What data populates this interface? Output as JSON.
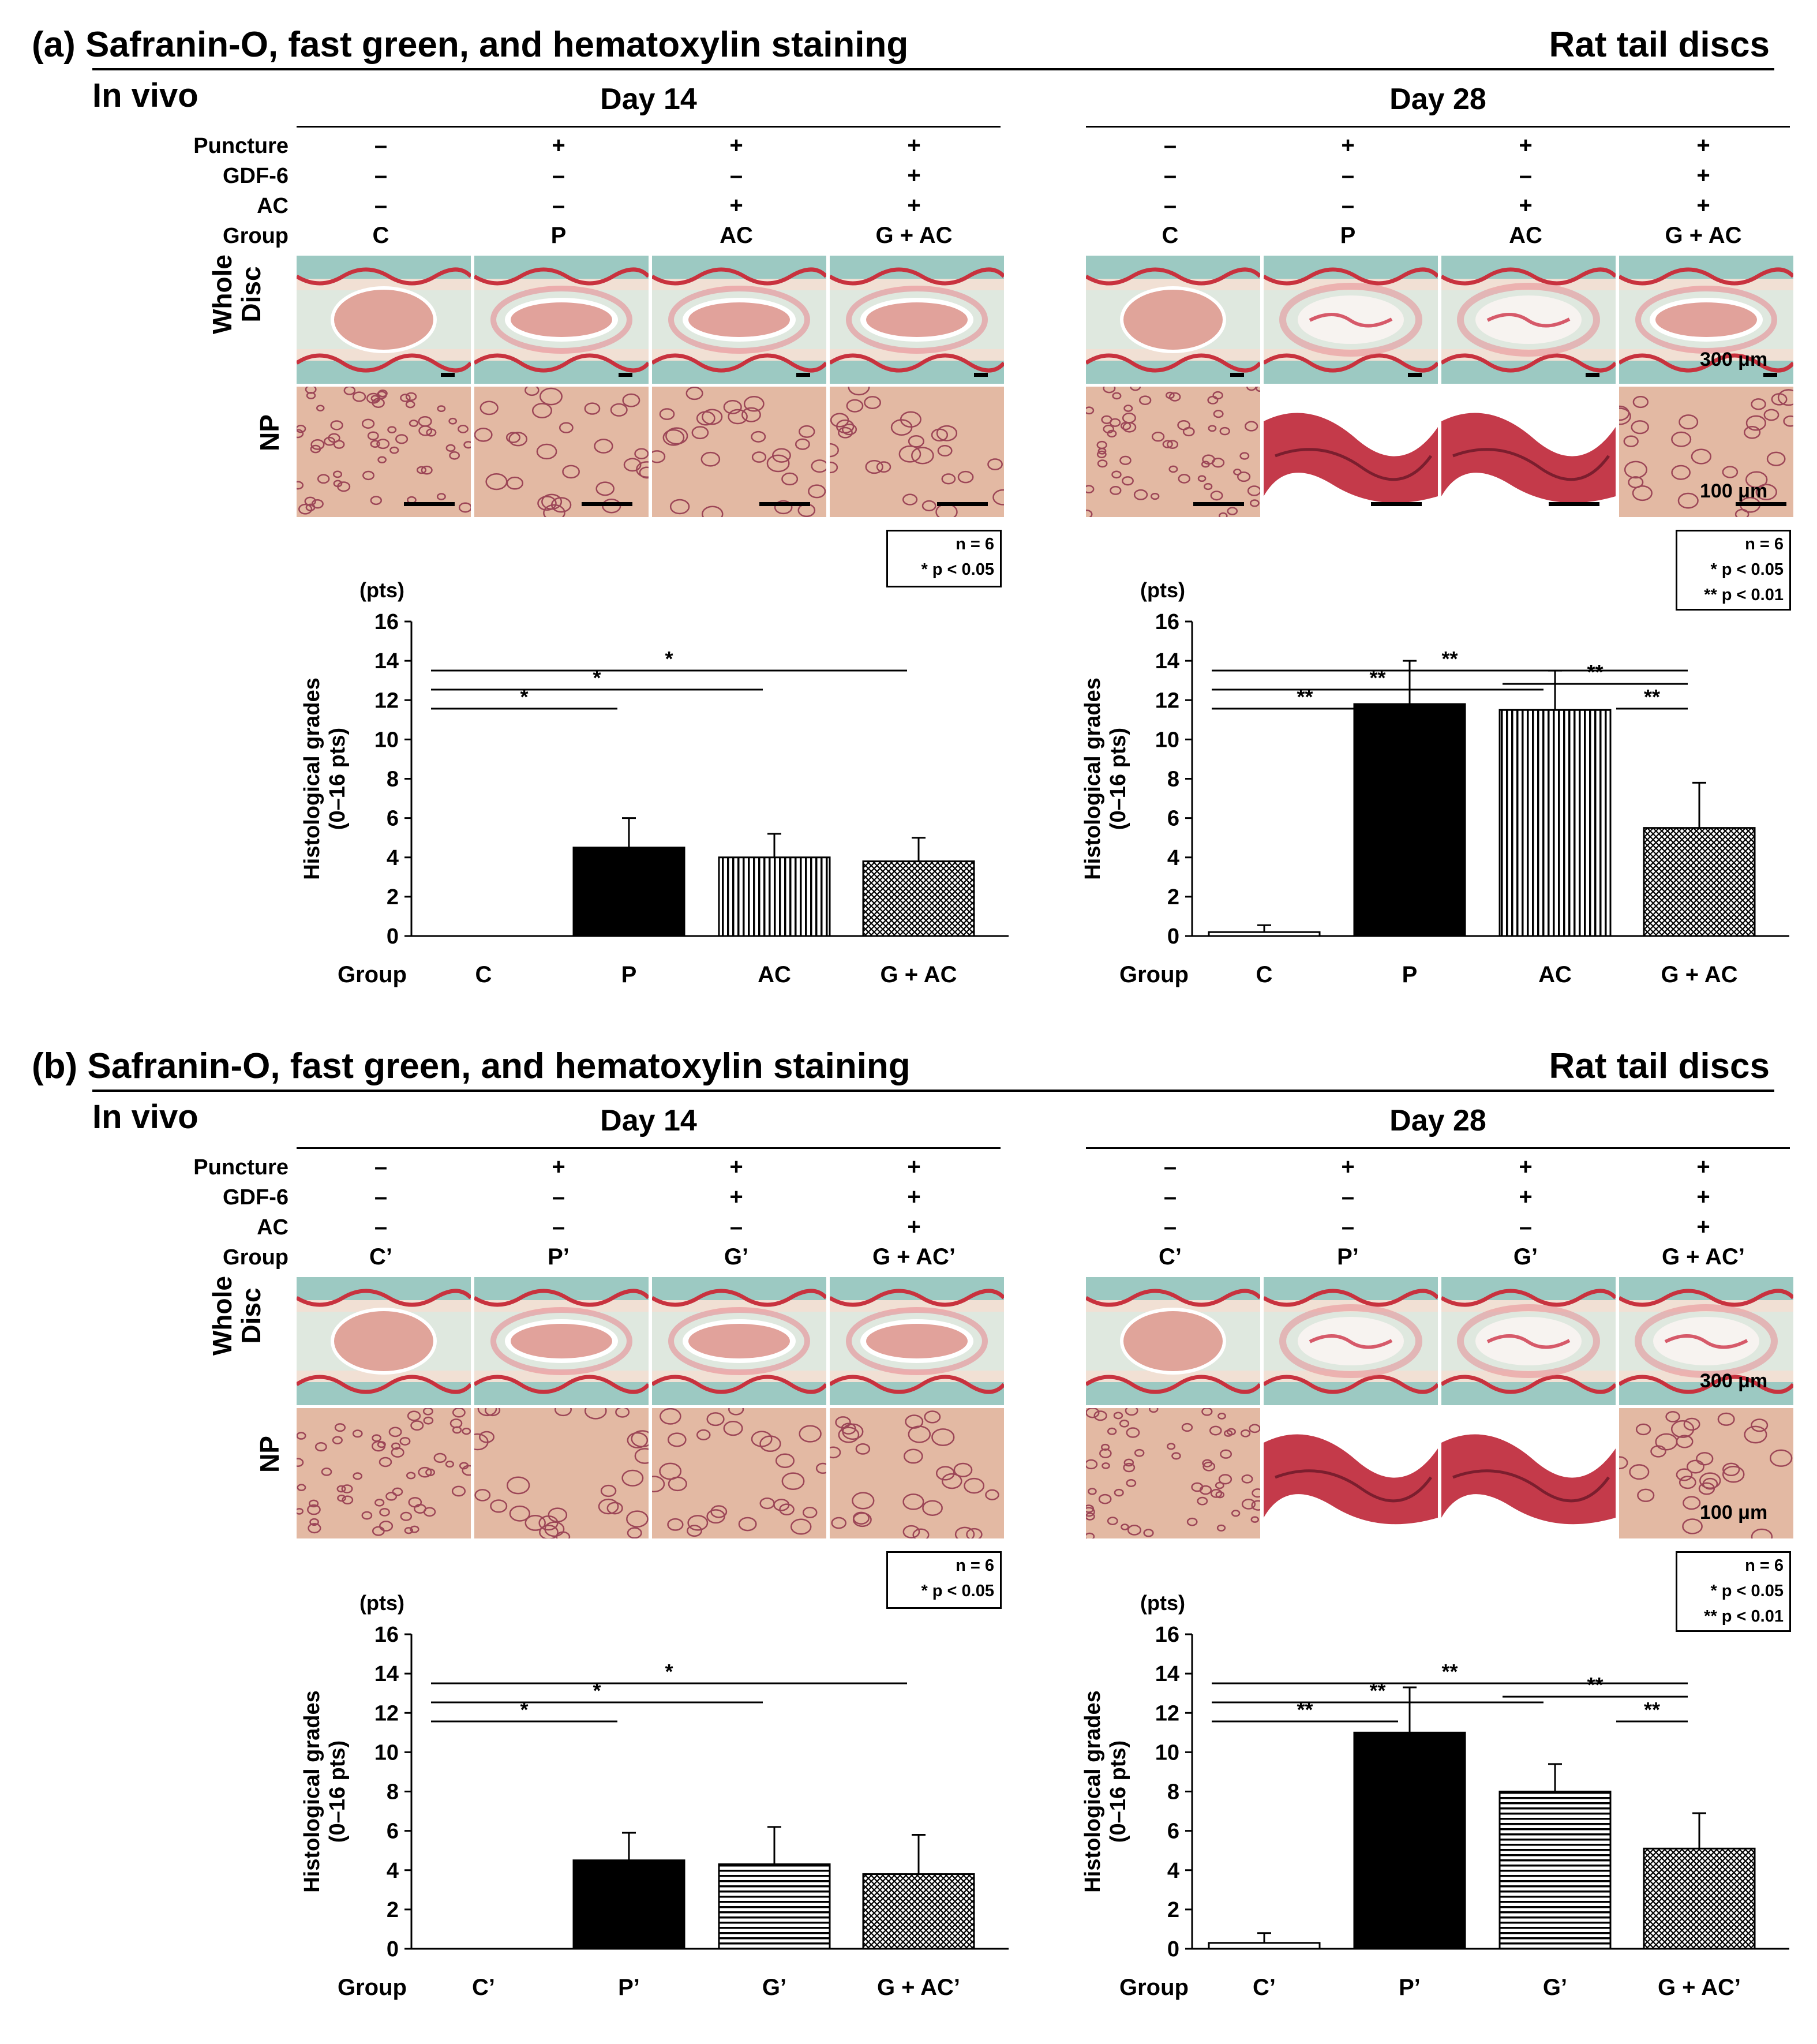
{
  "colors": {
    "stain_bg": "#f1e0d4",
    "stain_green": "#9cc9c2",
    "stain_red": "#c8323e",
    "np_bg": "#e3b9a3",
    "np_cell": "#9c4657"
  },
  "row_labels": {
    "puncture": "Puncture",
    "gdf6": "GDF-6",
    "ac": "AC",
    "group": "Group"
  },
  "image_row_labels": {
    "whole_disc_line1": "Whole",
    "whole_disc_line2": "Disc",
    "np": "NP"
  },
  "scale_labels": {
    "whole_disc": "300 μm",
    "np": "100 μm"
  },
  "axis": {
    "unit": "(pts)",
    "ylabel_line1": "Histological grades",
    "ylabel_line2": "(0–16 pts)",
    "xlabel": "Group",
    "ticks": [
      "0",
      "2",
      "4",
      "6",
      "8",
      "10",
      "12",
      "14",
      "16"
    ]
  },
  "panels": [
    {
      "title": "(a) Safranin-O, fast green, and hematoxylin staining",
      "right_label": "Rat tail discs",
      "mode": "In vivo",
      "days": [
        {
          "day": "Day 14",
          "treatments": {
            "puncture": [
              "–",
              "+",
              "+",
              "+"
            ],
            "gdf6": [
              "–",
              "–",
              "–",
              "+"
            ],
            "ac": [
              "–",
              "–",
              "+",
              "+"
            ]
          },
          "groups": [
            "C",
            "P",
            "AC",
            "G + AC"
          ],
          "legend": [
            "n = 6",
            "* p < 0.05"
          ]
        },
        {
          "day": "Day 28",
          "treatments": {
            "puncture": [
              "–",
              "+",
              "+",
              "+"
            ],
            "gdf6": [
              "–",
              "–",
              "–",
              "+"
            ],
            "ac": [
              "–",
              "–",
              "+",
              "+"
            ]
          },
          "groups": [
            "C",
            "P",
            "AC",
            "G + AC"
          ],
          "legend": [
            "n = 6",
            "* p < 0.05",
            "** p < 0.01"
          ]
        }
      ]
    },
    {
      "title": "(b) Safranin-O, fast green, and hematoxylin staining",
      "right_label": "Rat tail discs",
      "mode": "In vivo",
      "days": [
        {
          "day": "Day 14",
          "treatments": {
            "puncture": [
              "–",
              "+",
              "+",
              "+"
            ],
            "gdf6": [
              "–",
              "–",
              "+",
              "+"
            ],
            "ac": [
              "–",
              "–",
              "–",
              "+"
            ]
          },
          "groups": [
            "C’",
            "P’",
            "G’",
            "G + AC’"
          ],
          "legend": [
            "n = 6",
            "* p < 0.05"
          ]
        },
        {
          "day": "Day 28",
          "treatments": {
            "puncture": [
              "–",
              "+",
              "+",
              "+"
            ],
            "gdf6": [
              "–",
              "–",
              "+",
              "+"
            ],
            "ac": [
              "–",
              "–",
              "–",
              "+"
            ]
          },
          "groups": [
            "C’",
            "P’",
            "G’",
            "G + AC’"
          ],
          "legend": [
            "n = 6",
            "* p < 0.05",
            "** p < 0.01"
          ]
        }
      ]
    }
  ],
  "chart_data": [
    {
      "type": "bar",
      "panel": "a",
      "day": "Day 14",
      "xlabel": "Group",
      "ylabel": "Histological grades (0–16 pts)",
      "ylim": [
        0,
        16
      ],
      "categories": [
        "C",
        "P",
        "AC",
        "G + AC"
      ],
      "values": [
        0,
        4.5,
        4.0,
        3.8
      ],
      "errors": [
        0,
        1.5,
        1.2,
        1.2
      ],
      "patterns": [
        "white",
        "black",
        "vertical",
        "crosshatch"
      ],
      "significance": [
        {
          "from": 1,
          "to": 2,
          "label": "*",
          "level": 0
        },
        {
          "from": 1,
          "to": 3,
          "label": "*",
          "level": 1
        },
        {
          "from": 1,
          "to": 4,
          "label": "*",
          "level": 2
        }
      ]
    },
    {
      "type": "bar",
      "panel": "a",
      "day": "Day 28",
      "xlabel": "Group",
      "ylabel": "Histological grades (0–16 pts)",
      "ylim": [
        0,
        16
      ],
      "categories": [
        "C",
        "P",
        "AC",
        "G + AC"
      ],
      "values": [
        0.2,
        11.8,
        11.5,
        5.5
      ],
      "errors": [
        0.35,
        2.2,
        2.0,
        2.3
      ],
      "patterns": [
        "white",
        "black",
        "vertical",
        "crosshatch"
      ],
      "significance": [
        {
          "from": 1,
          "to": 2,
          "label": "**",
          "level": 0
        },
        {
          "from": 3,
          "to": 4,
          "label": "**",
          "level": 0
        },
        {
          "from": 1,
          "to": 3,
          "label": "**",
          "level": 1
        },
        {
          "from": 3,
          "to": 4,
          "label": "**",
          "level": 1.3
        },
        {
          "from": 1,
          "to": 4,
          "label": "**",
          "level": 2
        }
      ]
    },
    {
      "type": "bar",
      "panel": "b",
      "day": "Day 14",
      "xlabel": "Group",
      "ylabel": "Histological grades (0–16 pts)",
      "ylim": [
        0,
        16
      ],
      "categories": [
        "C’",
        "P’",
        "G’",
        "G + AC’"
      ],
      "values": [
        0,
        4.5,
        4.3,
        3.8
      ],
      "errors": [
        0,
        1.4,
        1.9,
        2.0
      ],
      "patterns": [
        "white",
        "black",
        "horizontal",
        "crosshatch"
      ],
      "significance": [
        {
          "from": 1,
          "to": 2,
          "label": "*",
          "level": 0
        },
        {
          "from": 1,
          "to": 3,
          "label": "*",
          "level": 1
        },
        {
          "from": 1,
          "to": 4,
          "label": "*",
          "level": 2
        }
      ]
    },
    {
      "type": "bar",
      "panel": "b",
      "day": "Day 28",
      "xlabel": "Group",
      "ylabel": "Histological grades (0–16 pts)",
      "ylim": [
        0,
        16
      ],
      "categories": [
        "C’",
        "P’",
        "G’",
        "G + AC’"
      ],
      "values": [
        0.3,
        11.0,
        8.0,
        5.1
      ],
      "errors": [
        0.5,
        2.3,
        1.4,
        1.8
      ],
      "patterns": [
        "white",
        "black",
        "horizontal",
        "crosshatch"
      ],
      "significance": [
        {
          "from": 1,
          "to": 2,
          "label": "**",
          "level": 0
        },
        {
          "from": 3,
          "to": 4,
          "label": "**",
          "level": 0
        },
        {
          "from": 1,
          "to": 3,
          "label": "**",
          "level": 1
        },
        {
          "from": 3,
          "to": 4,
          "label": "**",
          "level": 1.3
        },
        {
          "from": 1,
          "to": 4,
          "label": "**",
          "level": 2
        }
      ]
    }
  ]
}
